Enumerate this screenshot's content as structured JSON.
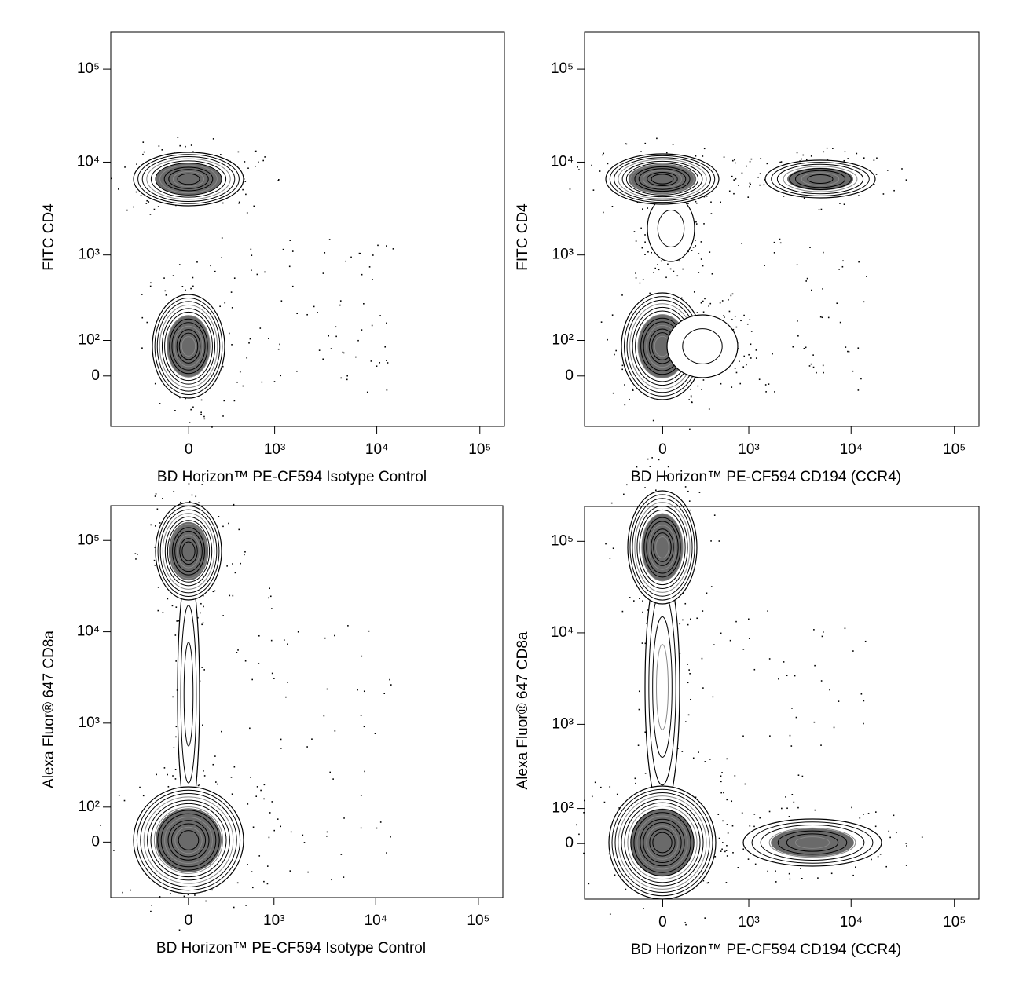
{
  "chart_data": [
    {
      "type": "contour",
      "xscale": "biexponential",
      "yscale": "biexponential",
      "xlabel": "BD Horizon™ PE-CF594 Isotype Control",
      "ylabel": "FITC CD4",
      "xlim": [
        -830,
        173000
      ],
      "ylim": [
        -160,
        250000
      ],
      "xticks": [
        0,
        {
          "value": 1000,
          "label": "10³"
        },
        {
          "value": 10000,
          "label": "10⁴"
        },
        {
          "value": 100000,
          "label": "10⁵"
        }
      ],
      "yticks": [
        0,
        {
          "value": 100,
          "label": "10²"
        },
        {
          "value": 1000,
          "label": "10³"
        },
        {
          "value": 10000,
          "label": "10⁴"
        },
        {
          "value": 100000,
          "label": "10⁵"
        }
      ]
    },
    {
      "type": "contour",
      "xscale": "biexponential",
      "yscale": "biexponential",
      "xlabel": "BD Horizon™ PE-CF594 CD194 (CCR4)",
      "ylabel": "FITC CD4",
      "xlim": [
        -830,
        173000
      ],
      "ylim": [
        -160,
        250000
      ],
      "xticks": [
        0,
        {
          "value": 1000,
          "label": "10³"
        },
        {
          "value": 10000,
          "label": "10⁴"
        },
        {
          "value": 100000,
          "label": "10⁵"
        }
      ],
      "yticks": [
        0,
        {
          "value": 100,
          "label": "10²"
        },
        {
          "value": 1000,
          "label": "10³"
        },
        {
          "value": 10000,
          "label": "10⁴"
        },
        {
          "value": 100000,
          "label": "10⁵"
        }
      ]
    },
    {
      "type": "contour",
      "xscale": "biexponential",
      "yscale": "biexponential",
      "xlabel": "BD Horizon™ PE-CF594 Isotype Control",
      "ylabel": "Alexa Fluor® 647 CD8a",
      "xlim": [
        -830,
        173000
      ],
      "ylim": [
        -190,
        240000
      ],
      "xticks": [
        0,
        {
          "value": 1000,
          "label": "10³"
        },
        {
          "value": 10000,
          "label": "10⁴"
        },
        {
          "value": 100000,
          "label": "10⁵"
        }
      ],
      "yticks": [
        0,
        {
          "value": 100,
          "label": "10²"
        },
        {
          "value": 1000,
          "label": "10³"
        },
        {
          "value": 10000,
          "label": "10⁴"
        },
        {
          "value": 100000,
          "label": "10⁵"
        }
      ]
    },
    {
      "type": "contour",
      "xscale": "biexponential",
      "yscale": "biexponential",
      "xlabel": "BD Horizon™ PE-CF594 CD194 (CCR4)",
      "ylabel": "Alexa Fluor® 647 CD8a",
      "xlim": [
        -830,
        173000
      ],
      "ylim": [
        -190,
        240000
      ],
      "xticks": [
        0,
        {
          "value": 1000,
          "label": "10³"
        },
        {
          "value": 10000,
          "label": "10⁴"
        },
        {
          "value": 100000,
          "label": "10⁵"
        }
      ],
      "yticks": [
        0,
        {
          "value": 100,
          "label": "10²"
        },
        {
          "value": 1000,
          "label": "10³"
        },
        {
          "value": 10000,
          "label": "10⁴"
        },
        {
          "value": 100000,
          "label": "10⁵"
        }
      ]
    }
  ]
}
